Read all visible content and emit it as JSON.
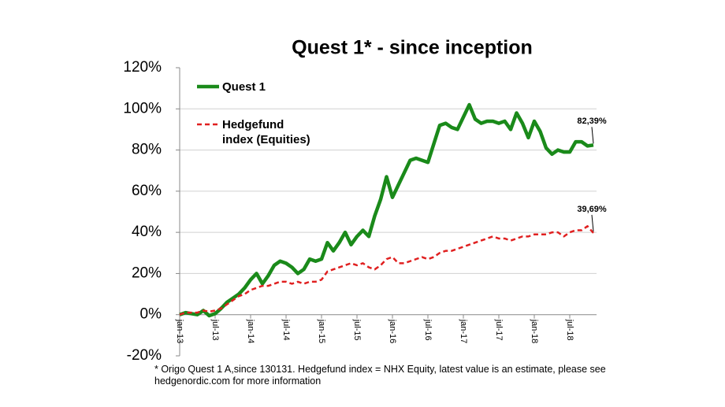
{
  "chart_data": {
    "type": "line",
    "title": "Quest 1* - since inception",
    "categories": [
      "jan-13",
      null,
      null,
      null,
      null,
      null,
      "jul-13",
      null,
      null,
      null,
      null,
      null,
      "jan-14",
      null,
      null,
      null,
      null,
      null,
      "jul-14",
      null,
      null,
      null,
      null,
      null,
      "jan-15",
      null,
      null,
      null,
      null,
      null,
      "jul-15",
      null,
      null,
      null,
      null,
      null,
      "jan-16",
      null,
      null,
      null,
      null,
      null,
      "jul-16",
      null,
      null,
      null,
      null,
      null,
      "jan-17",
      null,
      null,
      null,
      null,
      null,
      "jul-17",
      null,
      null,
      null,
      null,
      null,
      "jan-18",
      null,
      null,
      null,
      null,
      null,
      "jul-18",
      null,
      null,
      null,
      null
    ],
    "series": [
      {
        "name": "Quest 1",
        "color": "#1a8a1a",
        "values": [
          0,
          1,
          0.5,
          0,
          2,
          -0.5,
          0.5,
          3,
          6,
          8,
          10,
          13,
          17,
          20,
          15,
          19,
          24,
          26,
          25,
          23,
          20,
          22,
          27,
          26,
          27,
          35,
          31,
          35,
          40,
          34,
          38,
          41,
          38,
          48,
          56,
          67,
          57,
          63,
          69,
          75,
          76,
          75,
          74,
          83,
          92,
          93,
          91,
          90,
          96,
          102,
          95,
          93,
          94,
          94,
          93,
          94,
          90,
          98,
          93,
          86,
          94,
          89,
          81,
          78,
          80,
          79,
          79,
          84,
          84,
          82,
          82.39
        ],
        "value_labels": [
          null,
          null,
          null,
          null,
          null,
          null,
          null,
          null,
          null,
          null,
          null,
          null,
          null,
          null,
          null,
          null,
          null,
          null,
          null,
          null,
          null,
          null,
          null,
          null,
          null,
          null,
          null,
          null,
          null,
          null,
          null,
          null,
          null,
          null,
          null,
          null,
          null,
          null,
          null,
          null,
          null,
          null,
          null,
          null,
          null,
          null,
          null,
          null,
          null,
          null,
          null,
          null,
          null,
          null,
          null,
          null,
          null,
          null,
          null,
          null,
          null,
          null,
          null,
          null,
          null,
          null,
          null,
          null,
          null,
          null,
          "82,39%"
        ]
      },
      {
        "name": "Hedgefund index (Equities)",
        "color": "#e02020",
        "dashed": true,
        "values": [
          0,
          1,
          1,
          1,
          2,
          1.5,
          2,
          3,
          5,
          7,
          9,
          10,
          12,
          13,
          14,
          14,
          15,
          16,
          16,
          15,
          16,
          15,
          16,
          16,
          17,
          21,
          22,
          23,
          24,
          25,
          24,
          25,
          23,
          22,
          24,
          27,
          28,
          25,
          25,
          26,
          27,
          28,
          27,
          28,
          30,
          31,
          31,
          32,
          33,
          34,
          35,
          36,
          37,
          38,
          37,
          37,
          36,
          37,
          38,
          38,
          39,
          39,
          39,
          40,
          40,
          38,
          40,
          41,
          41,
          43,
          39.69
        ],
        "value_labels": [
          null,
          null,
          null,
          null,
          null,
          null,
          null,
          null,
          null,
          null,
          null,
          null,
          null,
          null,
          null,
          null,
          null,
          null,
          null,
          null,
          null,
          null,
          null,
          null,
          null,
          null,
          null,
          null,
          null,
          null,
          null,
          null,
          null,
          null,
          null,
          null,
          null,
          null,
          null,
          null,
          null,
          null,
          null,
          null,
          null,
          null,
          null,
          null,
          null,
          null,
          null,
          null,
          null,
          null,
          null,
          null,
          null,
          null,
          null,
          null,
          null,
          null,
          null,
          null,
          null,
          null,
          null,
          null,
          null,
          null,
          "39,69%"
        ]
      }
    ],
    "ylim": [
      -20,
      120
    ],
    "yticks": [
      {
        "value": -20,
        "label": "-20%"
      },
      {
        "value": 0,
        "label": "0%"
      },
      {
        "value": 20,
        "label": "20%"
      },
      {
        "value": 40,
        "label": "40%"
      },
      {
        "value": 60,
        "label": "60%"
      },
      {
        "value": 80,
        "label": "80%"
      },
      {
        "value": 100,
        "label": "100%"
      },
      {
        "value": 120,
        "label": "120%"
      }
    ],
    "grid": true,
    "footnote": "* Origo Quest 1 A,since 130131. Hedgefund index = NHX Equity, latest value is an estimate, please see hedgenordic.com for more information"
  }
}
